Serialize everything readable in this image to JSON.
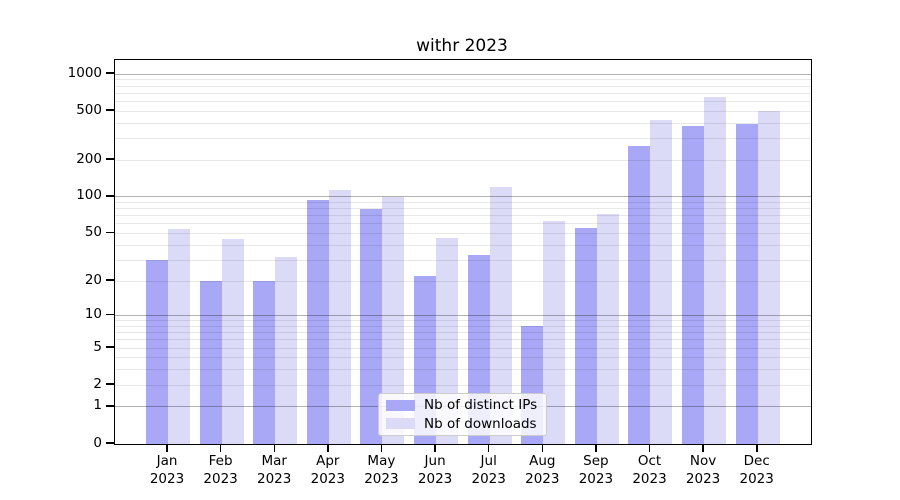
{
  "chart_data": {
    "type": "bar",
    "title": "withr 2023",
    "categories": [
      "Jan 2023",
      "Feb 2023",
      "Mar 2023",
      "Apr 2023",
      "May 2023",
      "Jun 2023",
      "Jul 2023",
      "Aug 2023",
      "Sep 2023",
      "Oct 2023",
      "Nov 2023",
      "Dec 2023"
    ],
    "series": [
      {
        "name": "Nb of distinct IPs",
        "color": "#a8a8f6",
        "values": [
          30,
          20,
          20,
          94,
          79,
          22,
          33,
          8,
          55,
          260,
          380,
          395
        ]
      },
      {
        "name": "Nb of downloads",
        "color": "#dbdbf8",
        "values": [
          54,
          45,
          32,
          113,
          100,
          46,
          120,
          64,
          72,
          425,
          650,
          505
        ]
      }
    ],
    "y_ticks": [
      0,
      1,
      2,
      5,
      10,
      20,
      50,
      100,
      200,
      500,
      1000
    ],
    "y_scale": "log1p",
    "ylim": [
      0,
      1300
    ],
    "grid": "on",
    "legend_position": "inside lower-center",
    "axis_color": "#000000",
    "major_grid_values": [
      1,
      10,
      100,
      1000
    ]
  }
}
